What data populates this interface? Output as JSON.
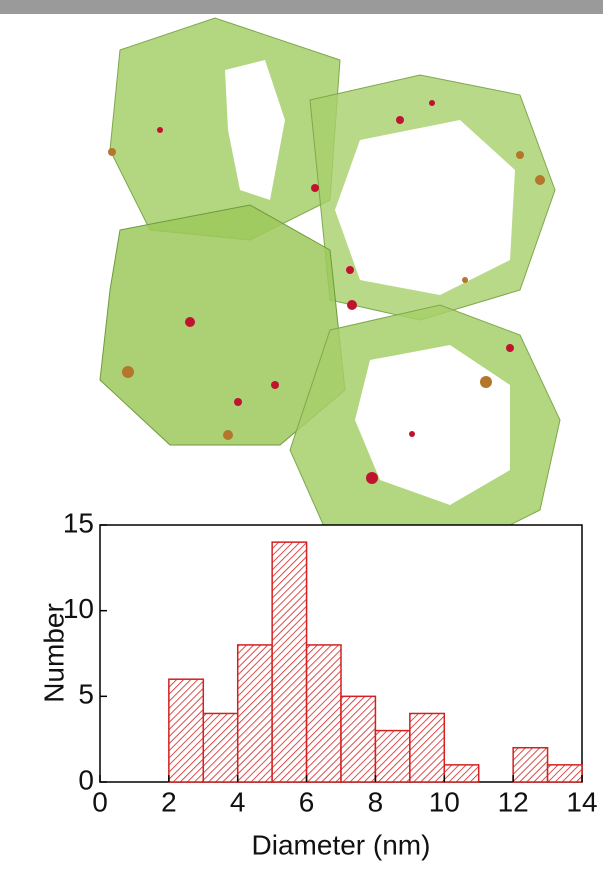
{
  "chart_data": {
    "type": "histogram",
    "x_label": "Diameter (nm)",
    "y_label": "Number",
    "bins": [
      2,
      3,
      4,
      5,
      6,
      7,
      8,
      9,
      10,
      11,
      12,
      13,
      14
    ],
    "values": [
      6,
      4,
      8,
      14,
      8,
      5,
      3,
      4,
      1,
      0,
      2,
      1
    ],
    "color": "#d42020",
    "xlim": [
      0,
      14
    ],
    "xticks": [
      0,
      2,
      4,
      6,
      8,
      10,
      12,
      14
    ],
    "ylim": [
      0,
      15
    ],
    "yticks": [
      0,
      5,
      10,
      15
    ]
  }
}
